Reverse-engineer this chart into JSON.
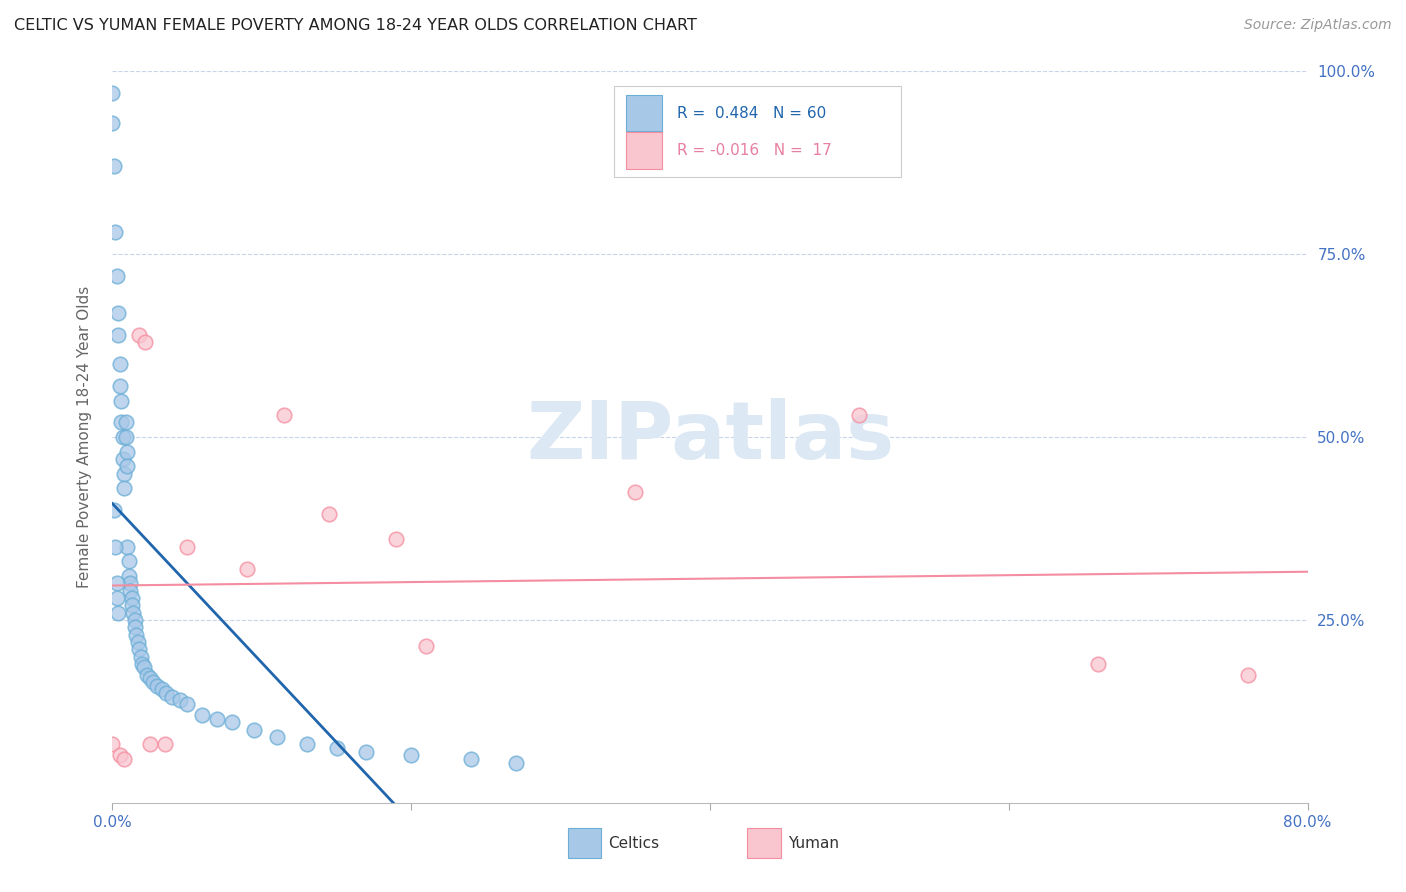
{
  "title": "CELTIC VS YUMAN FEMALE POVERTY AMONG 18-24 YEAR OLDS CORRELATION CHART",
  "source": "Source: ZipAtlas.com",
  "ylabel": "Female Poverty Among 18-24 Year Olds",
  "xlim": [
    0.0,
    0.8
  ],
  "ylim": [
    0.0,
    1.0
  ],
  "celtics_R": 0.484,
  "celtics_N": 60,
  "yuman_R": -0.016,
  "yuman_N": 17,
  "celtics_color": "#a8c8e8",
  "celtics_edge_color": "#6baed6",
  "yuman_color": "#f9c6d0",
  "yuman_edge_color": "#f48da0",
  "trend_celtics_color": "#2166ac",
  "trend_yuman_color": "#f48da0",
  "background_color": "#ffffff",
  "grid_color": "#c8d4e8",
  "watermark_color": "#dce8f4",
  "celtics_x": [
    0.0,
    0.0,
    0.001,
    0.002,
    0.003,
    0.004,
    0.004,
    0.005,
    0.005,
    0.006,
    0.006,
    0.007,
    0.007,
    0.008,
    0.008,
    0.009,
    0.009,
    0.01,
    0.01,
    0.01,
    0.011,
    0.011,
    0.012,
    0.012,
    0.013,
    0.013,
    0.014,
    0.015,
    0.015,
    0.016,
    0.017,
    0.018,
    0.019,
    0.02,
    0.021,
    0.023,
    0.025,
    0.027,
    0.03,
    0.033,
    0.036,
    0.04,
    0.045,
    0.05,
    0.06,
    0.07,
    0.08,
    0.095,
    0.11,
    0.13,
    0.15,
    0.17,
    0.2,
    0.24,
    0.27,
    0.001,
    0.002,
    0.003,
    0.003,
    0.004
  ],
  "celtics_y": [
    0.97,
    0.93,
    0.87,
    0.78,
    0.72,
    0.67,
    0.64,
    0.6,
    0.57,
    0.55,
    0.52,
    0.5,
    0.47,
    0.45,
    0.43,
    0.52,
    0.5,
    0.48,
    0.46,
    0.35,
    0.33,
    0.31,
    0.3,
    0.29,
    0.28,
    0.27,
    0.26,
    0.25,
    0.24,
    0.23,
    0.22,
    0.21,
    0.2,
    0.19,
    0.185,
    0.175,
    0.17,
    0.165,
    0.16,
    0.155,
    0.15,
    0.145,
    0.14,
    0.135,
    0.12,
    0.115,
    0.11,
    0.1,
    0.09,
    0.08,
    0.075,
    0.07,
    0.065,
    0.06,
    0.055,
    0.4,
    0.35,
    0.3,
    0.28,
    0.26
  ],
  "yuman_x": [
    0.0,
    0.005,
    0.008,
    0.018,
    0.022,
    0.025,
    0.035,
    0.05,
    0.09,
    0.115,
    0.145,
    0.19,
    0.21,
    0.35,
    0.5,
    0.66,
    0.76
  ],
  "yuman_y": [
    0.08,
    0.065,
    0.06,
    0.64,
    0.63,
    0.08,
    0.08,
    0.35,
    0.32,
    0.53,
    0.395,
    0.36,
    0.215,
    0.425,
    0.53,
    0.19,
    0.175
  ]
}
